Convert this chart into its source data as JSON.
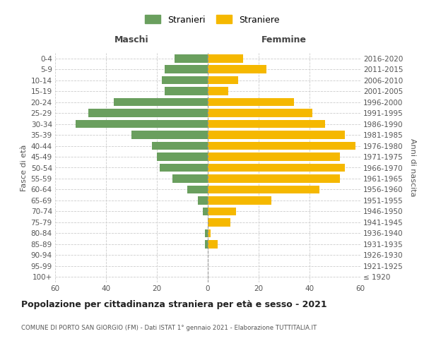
{
  "age_groups": [
    "100+",
    "95-99",
    "90-94",
    "85-89",
    "80-84",
    "75-79",
    "70-74",
    "65-69",
    "60-64",
    "55-59",
    "50-54",
    "45-49",
    "40-44",
    "35-39",
    "30-34",
    "25-29",
    "20-24",
    "15-19",
    "10-14",
    "5-9",
    "0-4"
  ],
  "birth_years": [
    "≤ 1920",
    "1921-1925",
    "1926-1930",
    "1931-1935",
    "1936-1940",
    "1941-1945",
    "1946-1950",
    "1951-1955",
    "1956-1960",
    "1961-1965",
    "1966-1970",
    "1971-1975",
    "1976-1980",
    "1981-1985",
    "1986-1990",
    "1991-1995",
    "1996-2000",
    "2001-2005",
    "2006-2010",
    "2011-2015",
    "2016-2020"
  ],
  "maschi": [
    0,
    0,
    0,
    1,
    1,
    0,
    2,
    4,
    8,
    14,
    19,
    20,
    22,
    30,
    52,
    47,
    37,
    17,
    18,
    17,
    13
  ],
  "femmine": [
    0,
    0,
    0,
    4,
    1,
    9,
    11,
    25,
    44,
    52,
    54,
    52,
    58,
    54,
    46,
    41,
    34,
    8,
    12,
    23,
    14
  ],
  "maschi_color": "#6a9f5e",
  "femmine_color": "#f5b800",
  "background_color": "#ffffff",
  "grid_color": "#cccccc",
  "title": "Popolazione per cittadinanza straniera per età e sesso - 2021",
  "subtitle": "COMUNE DI PORTO SAN GIORGIO (FM) - Dati ISTAT 1° gennaio 2021 - Elaborazione TUTTITALIA.IT",
  "xlabel_left": "Maschi",
  "xlabel_right": "Femmine",
  "ylabel_left": "Fasce di età",
  "ylabel_right": "Anni di nascita",
  "legend_stranieri": "Stranieri",
  "legend_straniere": "Straniere",
  "xlim": 60
}
